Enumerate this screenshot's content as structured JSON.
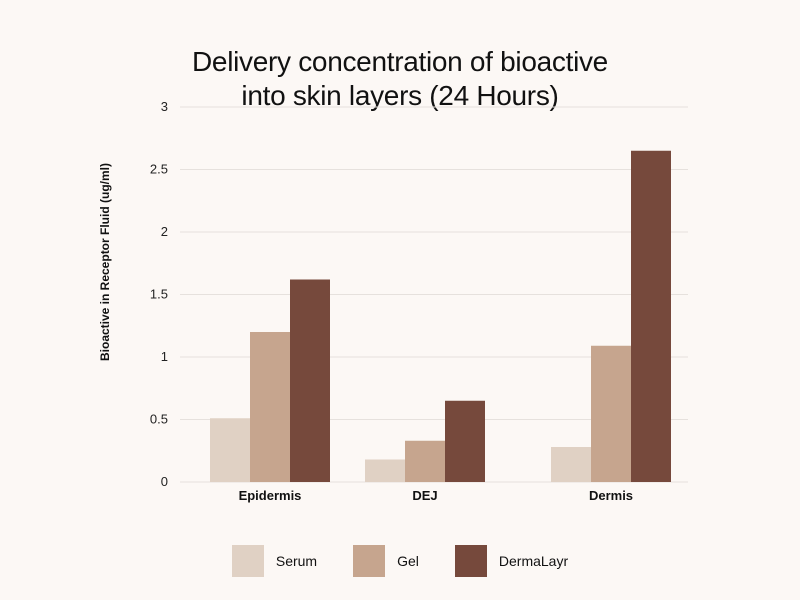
{
  "chart_data": {
    "type": "bar",
    "title_lines": [
      "Delivery concentration of bioactive",
      "into skin layers (24 Hours)"
    ],
    "xlabel": "",
    "ylabel": "Bioactive in Receptor Fluid (ug/ml)",
    "categories": [
      "Epidermis",
      "DEJ",
      "Dermis"
    ],
    "series": [
      {
        "name": "Serum",
        "values": [
          0.51,
          0.18,
          0.28
        ],
        "color": "#e0d1c4"
      },
      {
        "name": "Gel",
        "values": [
          1.2,
          0.33,
          1.09
        ],
        "color": "#c6a58e"
      },
      {
        "name": "DermaLayr",
        "values": [
          1.62,
          0.65,
          2.65
        ],
        "color": "#76493c"
      }
    ],
    "ylim": [
      0,
      3
    ],
    "yticks": [
      0,
      0.5,
      1,
      1.5,
      2,
      2.5,
      3
    ],
    "ytick_labels": [
      "0",
      "0.5",
      "1",
      "1.5",
      "2",
      "2.5",
      "3"
    ],
    "grid": true,
    "legend_position": "bottom",
    "grid_color": "#e6e1dd"
  }
}
